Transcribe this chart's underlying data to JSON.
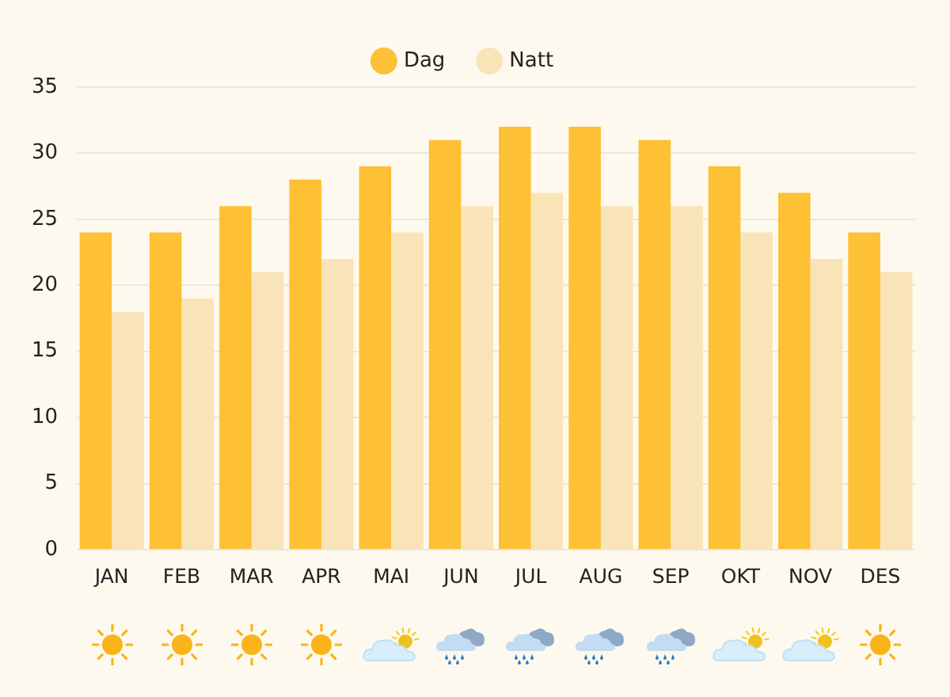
{
  "chart_data": {
    "type": "bar",
    "categories": [
      "JAN",
      "FEB",
      "MAR",
      "APR",
      "MAI",
      "JUN",
      "JUL",
      "AUG",
      "SEP",
      "OKT",
      "NOV",
      "DES"
    ],
    "series": [
      {
        "name": "Dag",
        "color": "#fec034",
        "values": [
          24,
          24,
          26,
          28,
          29,
          31,
          32,
          32,
          31,
          29,
          27,
          24
        ]
      },
      {
        "name": "Natt",
        "color": "#f9e4b8",
        "values": [
          18,
          19,
          21,
          22,
          24,
          26,
          27,
          26,
          26,
          24,
          22,
          21
        ]
      }
    ],
    "ylim": [
      0,
      35
    ],
    "yticks": [
      0,
      5,
      10,
      15,
      20,
      25,
      30,
      35
    ],
    "grid": "y",
    "legend": "top"
  }
}
